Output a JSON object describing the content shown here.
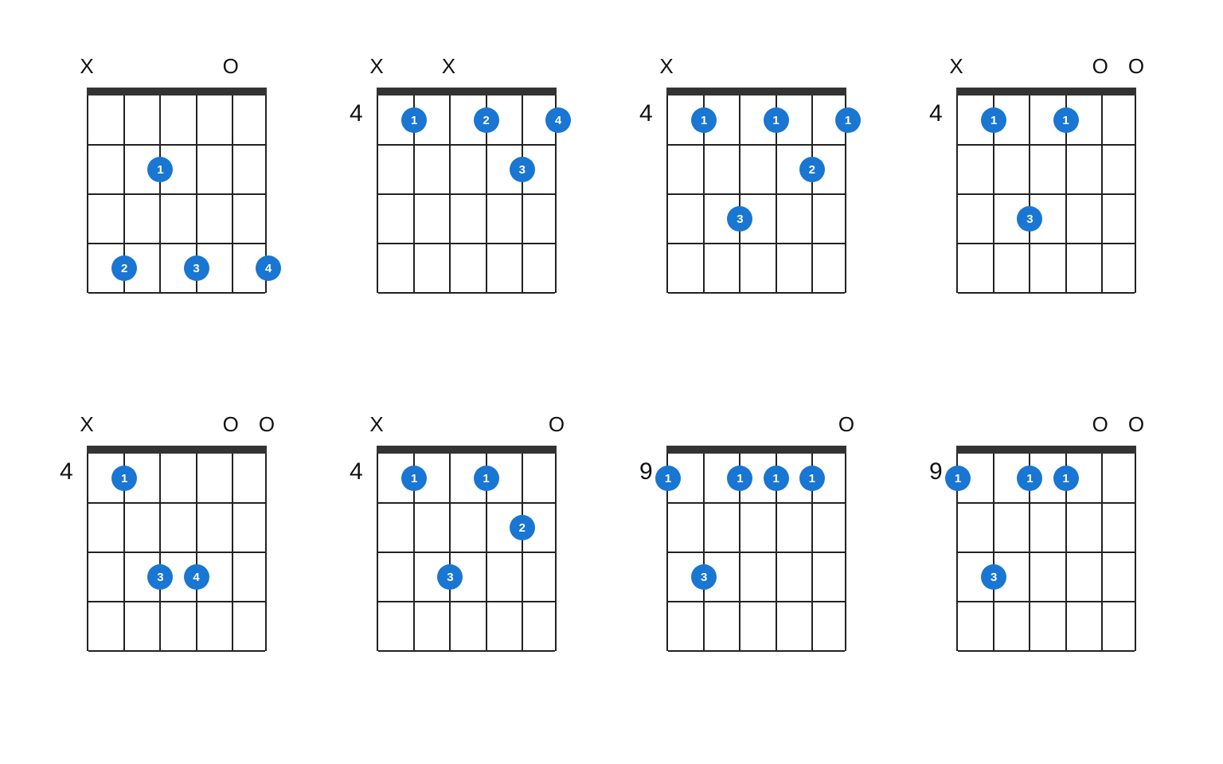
{
  "layout": {
    "numStrings": 6,
    "numFrets": 4,
    "boardWidth": 226,
    "fretHeight": 62,
    "dotSize": 32,
    "dotFontSize": 15,
    "nutWidth": 226
  },
  "colors": {
    "background": "#ffffff",
    "line": "#222222",
    "nut": "#333333",
    "dot": "#1976d2",
    "dotText": "#ffffff",
    "label": "#111111"
  },
  "symbols": {
    "mute": "X",
    "open": "O"
  },
  "chords": [
    {
      "startFret": null,
      "topMarks": [
        "X",
        null,
        null,
        null,
        "O",
        null
      ],
      "fingers": [
        {
          "string": 3,
          "fret": 2,
          "label": "1"
        },
        {
          "string": 2,
          "fret": 4,
          "label": "2"
        },
        {
          "string": 4,
          "fret": 4,
          "label": "3"
        },
        {
          "string": 6,
          "fret": 4,
          "label": "4"
        }
      ]
    },
    {
      "startFret": "4",
      "topMarks": [
        "X",
        null,
        "X",
        null,
        null,
        null
      ],
      "fingers": [
        {
          "string": 2,
          "fret": 1,
          "label": "1"
        },
        {
          "string": 4,
          "fret": 1,
          "label": "2"
        },
        {
          "string": 5,
          "fret": 2,
          "label": "3"
        },
        {
          "string": 6,
          "fret": 1,
          "label": "4"
        }
      ]
    },
    {
      "startFret": "4",
      "topMarks": [
        "X",
        null,
        null,
        null,
        null,
        null
      ],
      "fingers": [
        {
          "string": 2,
          "fret": 1,
          "label": "1"
        },
        {
          "string": 4,
          "fret": 1,
          "label": "1"
        },
        {
          "string": 6,
          "fret": 1,
          "label": "1"
        },
        {
          "string": 5,
          "fret": 2,
          "label": "2"
        },
        {
          "string": 3,
          "fret": 3,
          "label": "3"
        }
      ]
    },
    {
      "startFret": "4",
      "topMarks": [
        "X",
        null,
        null,
        null,
        "O",
        "O"
      ],
      "fingers": [
        {
          "string": 2,
          "fret": 1,
          "label": "1"
        },
        {
          "string": 4,
          "fret": 1,
          "label": "1"
        },
        {
          "string": 3,
          "fret": 3,
          "label": "3"
        }
      ]
    },
    {
      "startFret": "4",
      "topMarks": [
        "X",
        null,
        null,
        null,
        "O",
        "O"
      ],
      "fingers": [
        {
          "string": 2,
          "fret": 1,
          "label": "1"
        },
        {
          "string": 3,
          "fret": 3,
          "label": "3"
        },
        {
          "string": 4,
          "fret": 3,
          "label": "4"
        }
      ]
    },
    {
      "startFret": "4",
      "topMarks": [
        "X",
        null,
        null,
        null,
        null,
        "O"
      ],
      "fingers": [
        {
          "string": 2,
          "fret": 1,
          "label": "1"
        },
        {
          "string": 4,
          "fret": 1,
          "label": "1"
        },
        {
          "string": 5,
          "fret": 2,
          "label": "2"
        },
        {
          "string": 3,
          "fret": 3,
          "label": "3"
        }
      ]
    },
    {
      "startFret": "9",
      "topMarks": [
        null,
        null,
        null,
        null,
        null,
        "O"
      ],
      "fingers": [
        {
          "string": 1,
          "fret": 1,
          "label": "1"
        },
        {
          "string": 3,
          "fret": 1,
          "label": "1"
        },
        {
          "string": 4,
          "fret": 1,
          "label": "1"
        },
        {
          "string": 5,
          "fret": 1,
          "label": "1"
        },
        {
          "string": 2,
          "fret": 3,
          "label": "3"
        }
      ]
    },
    {
      "startFret": "9",
      "topMarks": [
        null,
        null,
        null,
        null,
        "O",
        "O"
      ],
      "fingers": [
        {
          "string": 1,
          "fret": 1,
          "label": "1"
        },
        {
          "string": 3,
          "fret": 1,
          "label": "1"
        },
        {
          "string": 4,
          "fret": 1,
          "label": "1"
        },
        {
          "string": 2,
          "fret": 3,
          "label": "3"
        }
      ]
    }
  ]
}
